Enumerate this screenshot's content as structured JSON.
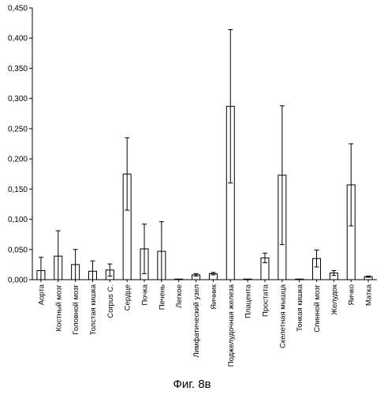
{
  "chart_data": {
    "type": "bar",
    "title": "",
    "xlabel": "",
    "ylabel": "",
    "ylim": [
      0,
      0.45
    ],
    "yticks": [
      "0,000",
      "0,050",
      "0,100",
      "0,150",
      "0,200",
      "0,250",
      "0,300",
      "0,350",
      "0,400",
      "0,450"
    ],
    "ytick_values": [
      0,
      0.05,
      0.1,
      0.15,
      0.2,
      0.25,
      0.3,
      0.35,
      0.4,
      0.45
    ],
    "grid": false,
    "categories": [
      "Аорта",
      "Костный мозг",
      "Головной мозг",
      "Толстая кишка",
      "Corpus C.",
      "Сердце",
      "Почка",
      "Печень",
      "Легкое",
      "Лимфатический узел",
      "Яичник",
      "Поджелудочная железа",
      "Плацента",
      "Простата",
      "Скелетная мышца",
      "Тонкая кишка",
      "Спинной мозг",
      "Желудок",
      "Яичко",
      "Матка"
    ],
    "values": [
      0.015,
      0.039,
      0.025,
      0.014,
      0.016,
      0.175,
      0.051,
      0.047,
      0.001,
      0.008,
      0.01,
      0.287,
      0.001,
      0.036,
      0.173,
      0.001,
      0.035,
      0.011,
      0.157,
      0.005
    ],
    "errors": [
      0.022,
      0.042,
      0.025,
      0.017,
      0.01,
      0.06,
      0.041,
      0.049,
      0.0,
      0.002,
      0.002,
      0.127,
      0.0,
      0.008,
      0.115,
      0.0,
      0.014,
      0.004,
      0.068,
      0.001
    ]
  },
  "caption": "Фиг. 8в"
}
